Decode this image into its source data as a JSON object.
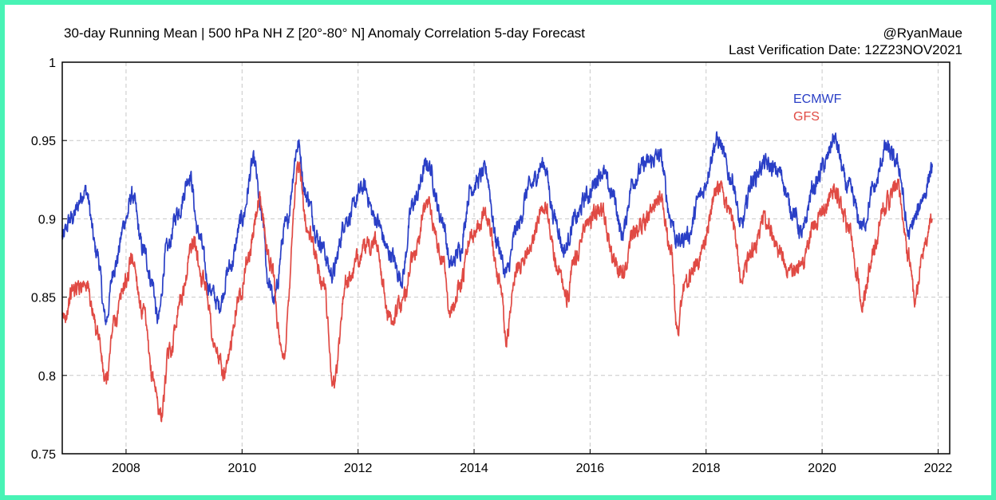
{
  "header": {
    "title": "30-day Running Mean | 500 hPa NH Z [20°-80° N] Anomaly Correlation 5-day Forecast",
    "credit": "@RyanMaue",
    "verification": "Last Verification Date: 12Z23NOV2021"
  },
  "colors": {
    "frame": "#48f3b5",
    "ecmwf": "#2a3fc6",
    "gfs": "#e04a44",
    "grid": "#c8c8c8"
  },
  "chart_data": {
    "type": "line",
    "title": "30-day Running Mean | 500 hPa NH Z [20°-80° N] Anomaly Correlation 5-day Forecast",
    "xlabel": "",
    "ylabel": "",
    "xlim": [
      2006.9,
      2022.2
    ],
    "ylim": [
      0.75,
      1.0
    ],
    "xticks": [
      2008,
      2010,
      2012,
      2014,
      2016,
      2018,
      2020,
      2022
    ],
    "xtick_labels": [
      "2008",
      "2010",
      "2012",
      "2014",
      "2016",
      "2018",
      "2020",
      "2022"
    ],
    "yticks": [
      0.75,
      0.8,
      0.85,
      0.9,
      0.95,
      1.0
    ],
    "ytick_labels": [
      "0.75",
      "0.8",
      "0.85",
      "0.9",
      "0.95",
      "1"
    ],
    "grid": true,
    "legend": "top-right",
    "series": [
      {
        "name": "ECMWF",
        "color": "#2a3fc6",
        "x": [
          2006.9,
          2007.05,
          2007.3,
          2007.5,
          2007.65,
          2007.8,
          2008.0,
          2008.1,
          2008.3,
          2008.45,
          2008.55,
          2008.7,
          2008.9,
          2009.1,
          2009.25,
          2009.45,
          2009.6,
          2009.8,
          2010.0,
          2010.2,
          2010.35,
          2010.45,
          2010.55,
          2010.75,
          2010.97,
          2011.1,
          2011.35,
          2011.55,
          2011.8,
          2012.1,
          2012.3,
          2012.55,
          2012.75,
          2012.95,
          2013.2,
          2013.45,
          2013.6,
          2013.75,
          2013.95,
          2014.2,
          2014.4,
          2014.55,
          2014.75,
          2014.95,
          2015.2,
          2015.4,
          2015.55,
          2015.75,
          2015.95,
          2016.2,
          2016.4,
          2016.55,
          2016.75,
          2016.95,
          2017.2,
          2017.4,
          2017.5,
          2017.7,
          2017.9,
          2018.2,
          2018.45,
          2018.6,
          2018.8,
          2019.0,
          2019.25,
          2019.5,
          2019.65,
          2019.85,
          2020.05,
          2020.2,
          2020.45,
          2020.7,
          2020.9,
          2021.1,
          2021.3,
          2021.5,
          2021.6,
          2021.75,
          2021.9
        ],
        "y": [
          0.888,
          0.9,
          0.918,
          0.878,
          0.835,
          0.87,
          0.9,
          0.915,
          0.88,
          0.86,
          0.835,
          0.88,
          0.905,
          0.928,
          0.89,
          0.855,
          0.845,
          0.87,
          0.9,
          0.936,
          0.9,
          0.86,
          0.848,
          0.895,
          0.947,
          0.915,
          0.885,
          0.865,
          0.9,
          0.92,
          0.9,
          0.878,
          0.862,
          0.91,
          0.935,
          0.9,
          0.87,
          0.88,
          0.92,
          0.93,
          0.885,
          0.865,
          0.895,
          0.92,
          0.935,
          0.9,
          0.88,
          0.9,
          0.915,
          0.93,
          0.915,
          0.89,
          0.925,
          0.935,
          0.94,
          0.9,
          0.885,
          0.89,
          0.915,
          0.95,
          0.925,
          0.895,
          0.925,
          0.935,
          0.93,
          0.905,
          0.89,
          0.92,
          0.935,
          0.951,
          0.92,
          0.895,
          0.92,
          0.945,
          0.935,
          0.89,
          0.9,
          0.915,
          0.933
        ]
      },
      {
        "name": "GFS",
        "color": "#e04a44",
        "x": [
          2006.9,
          2007.1,
          2007.3,
          2007.5,
          2007.65,
          2007.8,
          2008.0,
          2008.1,
          2008.3,
          2008.45,
          2008.6,
          2008.75,
          2008.95,
          2009.15,
          2009.35,
          2009.55,
          2009.7,
          2009.95,
          2010.1,
          2010.3,
          2010.5,
          2010.7,
          2010.97,
          2011.15,
          2011.4,
          2011.58,
          2011.8,
          2012.1,
          2012.3,
          2012.55,
          2012.75,
          2012.95,
          2013.2,
          2013.45,
          2013.6,
          2013.75,
          2013.95,
          2014.2,
          2014.45,
          2014.55,
          2014.75,
          2014.95,
          2015.2,
          2015.45,
          2015.6,
          2015.75,
          2015.95,
          2016.2,
          2016.4,
          2016.55,
          2016.75,
          2016.95,
          2017.2,
          2017.4,
          2017.5,
          2017.65,
          2017.9,
          2018.2,
          2018.45,
          2018.6,
          2018.8,
          2019.0,
          2019.25,
          2019.5,
          2019.65,
          2019.85,
          2020.05,
          2020.2,
          2020.45,
          2020.6,
          2020.7,
          2020.85,
          2021.1,
          2021.3,
          2021.5,
          2021.6,
          2021.75,
          2021.9
        ],
        "y": [
          0.835,
          0.855,
          0.86,
          0.83,
          0.795,
          0.835,
          0.86,
          0.875,
          0.84,
          0.8,
          0.775,
          0.815,
          0.85,
          0.885,
          0.86,
          0.815,
          0.8,
          0.85,
          0.875,
          0.91,
          0.87,
          0.81,
          0.932,
          0.89,
          0.86,
          0.795,
          0.86,
          0.88,
          0.885,
          0.835,
          0.845,
          0.875,
          0.91,
          0.875,
          0.84,
          0.855,
          0.89,
          0.905,
          0.86,
          0.825,
          0.87,
          0.88,
          0.91,
          0.87,
          0.85,
          0.875,
          0.9,
          0.905,
          0.875,
          0.865,
          0.89,
          0.9,
          0.915,
          0.88,
          0.83,
          0.86,
          0.875,
          0.92,
          0.9,
          0.865,
          0.88,
          0.9,
          0.88,
          0.865,
          0.87,
          0.895,
          0.905,
          0.92,
          0.895,
          0.865,
          0.845,
          0.875,
          0.91,
          0.92,
          0.875,
          0.85,
          0.88,
          0.9
        ]
      }
    ]
  }
}
